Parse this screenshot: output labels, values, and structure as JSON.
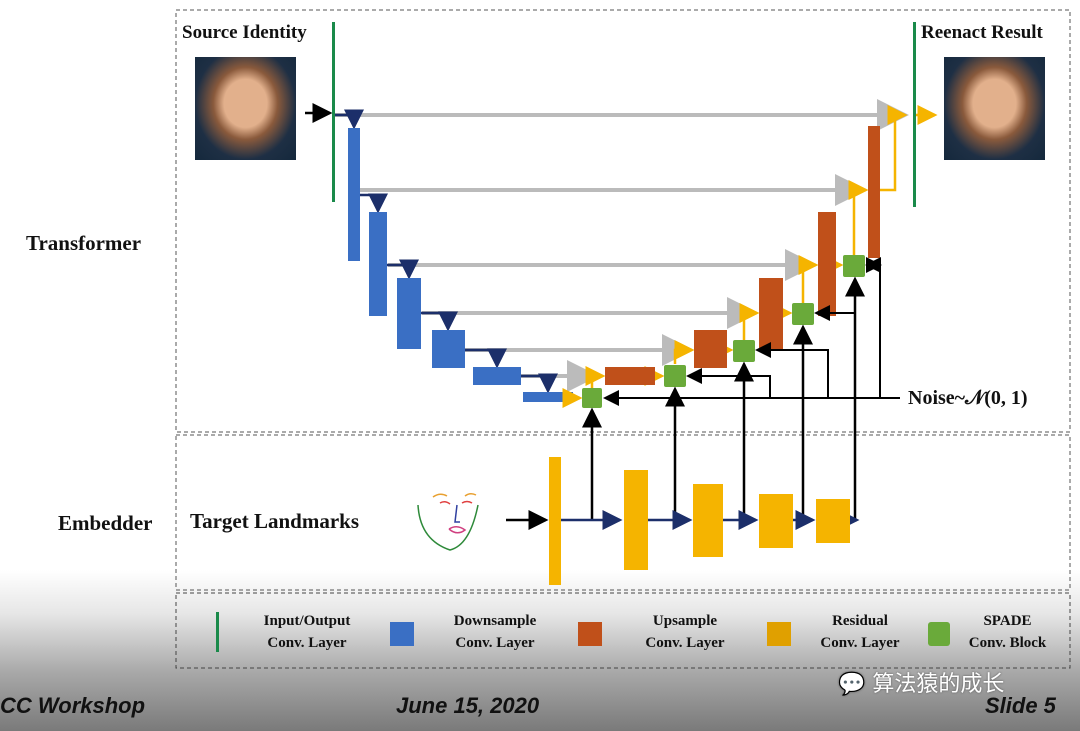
{
  "diagram": {
    "labels": {
      "source_identity": "Source Identity",
      "reenact_result": "Reenact Result",
      "transformer": "Transformer",
      "embedder": "Embedder",
      "target_landmarks": "Target Landmarks",
      "noise": "Noise~𝒩(0, 1)"
    },
    "colors": {
      "io": "#1a8a4a",
      "downsample": "#3a6fc4",
      "upsample": "#c0501a",
      "residual": "#f5b400",
      "spade": "#6aaa3a",
      "skip": "#bbbbbb"
    }
  },
  "legend": [
    {
      "line1": "Input/Output",
      "line2": "Conv. Layer"
    },
    {
      "line1": "Downsample",
      "line2": "Conv. Layer"
    },
    {
      "line1": "Upsample",
      "line2": "Conv. Layer"
    },
    {
      "line1": "Residual",
      "line2": "Conv. Layer"
    },
    {
      "line1": "SPADE",
      "line2": "Conv. Block"
    }
  ],
  "footer": {
    "left": "CC  Workshop",
    "center": "June 15, 2020",
    "right": "Slide 5",
    "watermark": "算法猿的成长"
  }
}
